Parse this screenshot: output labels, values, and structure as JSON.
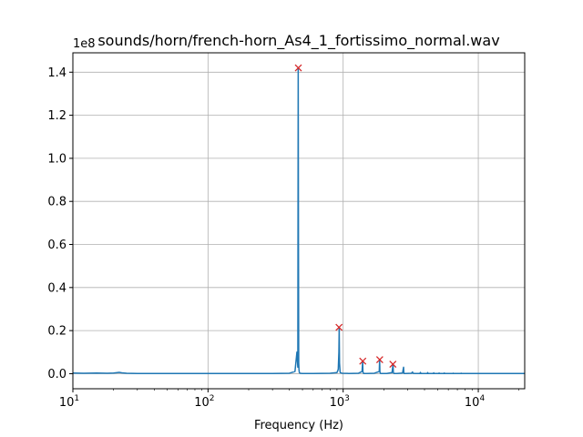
{
  "chart_data": {
    "type": "line",
    "title": "sounds/horn/french-horn_As4_1_fortissimo_normal.wav",
    "xlabel": "Frequency (Hz)",
    "ylabel": "",
    "xscale": "log",
    "xlim": [
      10,
      22050
    ],
    "ylim": [
      -0.07,
      1.49
    ],
    "y_offset_text": "1e8",
    "grid": true,
    "x_ticks": [
      {
        "value": 10,
        "base": "10",
        "exp": "1"
      },
      {
        "value": 100,
        "base": "10",
        "exp": "2"
      },
      {
        "value": 1000,
        "base": "10",
        "exp": "3"
      },
      {
        "value": 10000,
        "base": "10",
        "exp": "4"
      }
    ],
    "y_ticks": [
      {
        "value": 0.0,
        "label": "0.0"
      },
      {
        "value": 0.2,
        "label": "0.2"
      },
      {
        "value": 0.4,
        "label": "0.4"
      },
      {
        "value": 0.6,
        "label": "0.6"
      },
      {
        "value": 0.8,
        "label": "0.8"
      },
      {
        "value": 1.0,
        "label": "1.0"
      },
      {
        "value": 1.2,
        "label": "1.2"
      },
      {
        "value": 1.4,
        "label": "1.4"
      }
    ],
    "series": [
      {
        "color": "#1f77b4",
        "x": [
          10,
          12,
          15,
          18,
          20,
          22,
          23,
          25,
          30,
          40,
          60,
          100,
          200,
          300,
          400,
          440,
          455,
          462,
          465,
          467,
          469,
          471,
          474,
          480,
          500,
          600,
          800,
          900,
          920,
          930,
          935,
          940,
          950,
          980,
          1100,
          1300,
          1380,
          1395,
          1400,
          1410,
          1420,
          1500,
          1700,
          1850,
          1862,
          1870,
          1880,
          1900,
          2100,
          2300,
          2340,
          2350,
          2360,
          2380,
          2500,
          2750,
          2800,
          2810,
          2830,
          2900,
          3200,
          3260,
          3280,
          3400,
          3700,
          3730,
          3760,
          4000,
          4200,
          4220,
          4250,
          4500,
          4660,
          4680,
          4700,
          5000,
          5100,
          5130,
          5160,
          5500,
          5580,
          5600,
          5630,
          6000,
          6500,
          6530,
          6550,
          7000,
          7450,
          7470,
          7500,
          8000,
          10000,
          15000,
          22050
        ],
        "y": [
          0.003,
          0.002,
          0.003,
          0.002,
          0.003,
          0.006,
          0.004,
          0.002,
          0.001,
          0.001,
          0.001,
          0.001,
          0.001,
          0.001,
          0.002,
          0.01,
          0.1,
          0.03,
          1.42,
          0.6,
          0.05,
          0.02,
          0.005,
          0.002,
          0.001,
          0.001,
          0.002,
          0.005,
          0.02,
          0.1,
          0.215,
          0.05,
          0.005,
          0.002,
          0.001,
          0.002,
          0.01,
          0.058,
          0.01,
          0.003,
          0.001,
          0.001,
          0.002,
          0.01,
          0.065,
          0.01,
          0.003,
          0.001,
          0.001,
          0.005,
          0.044,
          0.01,
          0.003,
          0.001,
          0.001,
          0.003,
          0.03,
          0.005,
          0.001,
          0.001,
          0.002,
          0.008,
          0.002,
          0.001,
          0.001,
          0.006,
          0.001,
          0.001,
          0.001,
          0.005,
          0.001,
          0.001,
          0.001,
          0.004,
          0.001,
          0.001,
          0.001,
          0.003,
          0.001,
          0.001,
          0.001,
          0.003,
          0.001,
          0.001,
          0.001,
          0.002,
          0.001,
          0.001,
          0.001,
          0.002,
          0.001,
          0.001,
          0.001,
          0.001,
          0.001
        ]
      },
      {
        "type": "scatter",
        "marker": "x",
        "color": "#d62728",
        "x": [
          466,
          932,
          1397,
          1865,
          2333
        ],
        "y": [
          1.42,
          0.215,
          0.058,
          0.065,
          0.044
        ]
      }
    ]
  }
}
